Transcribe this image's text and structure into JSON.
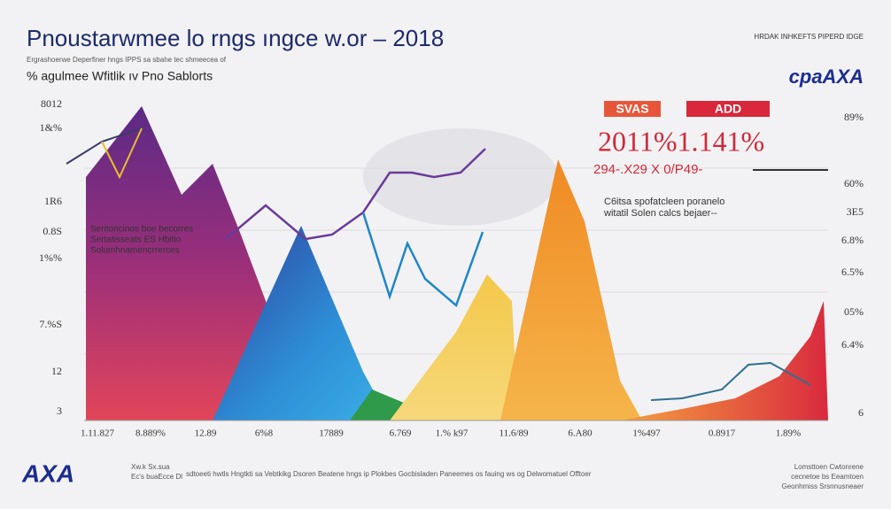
{
  "header": {
    "title": "Pnoustarwmee lo rngs ıngce w.or – 2018",
    "note": "Ergrashoerwe Deperfiner hngs IPPS sa sbahe tec shmeecea of",
    "subtitle": "% agulmee Wfitlik ıv Pno Sablorts",
    "top_right": "HRDAK INHKEFTS PIPERD IDGE",
    "logo": "cpaAXA"
  },
  "left_ticks": [
    "8012",
    "1&%",
    "1R6",
    "0.8S",
    "1%%",
    "7.%S",
    "12",
    "3"
  ],
  "right_ticks": [
    "89%",
    "60%",
    "3E5",
    "6.8%",
    "6.5%",
    "05%",
    "6.4%",
    "6"
  ],
  "x_labels": [
    "1.11.827",
    "8.889%",
    "12.89",
    "6%8",
    "17889",
    "6.769",
    "1.% k97",
    "11.6/89",
    "6.A80",
    "1%497",
    "0.8917",
    "1.89%"
  ],
  "left_annotation": [
    "Seritoncinos boe becorres",
    "Sertatisseats ES Hbitio",
    "Solumhnamencrrerces"
  ],
  "right_annotation": {
    "tags": [
      "SVAS",
      "ADD"
    ],
    "headline": "2011%1.141%",
    "sub": "294-.X29  X 0/P49-",
    "lines": [
      "C6itsa spofatcleen poranelo",
      "witatil Solen calcs bejaer--"
    ]
  },
  "footer": {
    "logo": "AXA",
    "left": [
      "Xw.k Sx.sua",
      "Ec's buaEcce Dl"
    ],
    "middle": [
      "sdtoeeti hwtls Hngtkti sa Vebtkikg Dsoren Beatene hngs ip Plokbes Gocbisladen Paneemes os fauing ws og Delwomatuel Offtoer"
    ],
    "right": [
      "Lomsttoen Cwtonrene",
      "cecnetoe bs Eeamtoen",
      "Geonhmiss Srsnnusneaer"
    ]
  }
}
